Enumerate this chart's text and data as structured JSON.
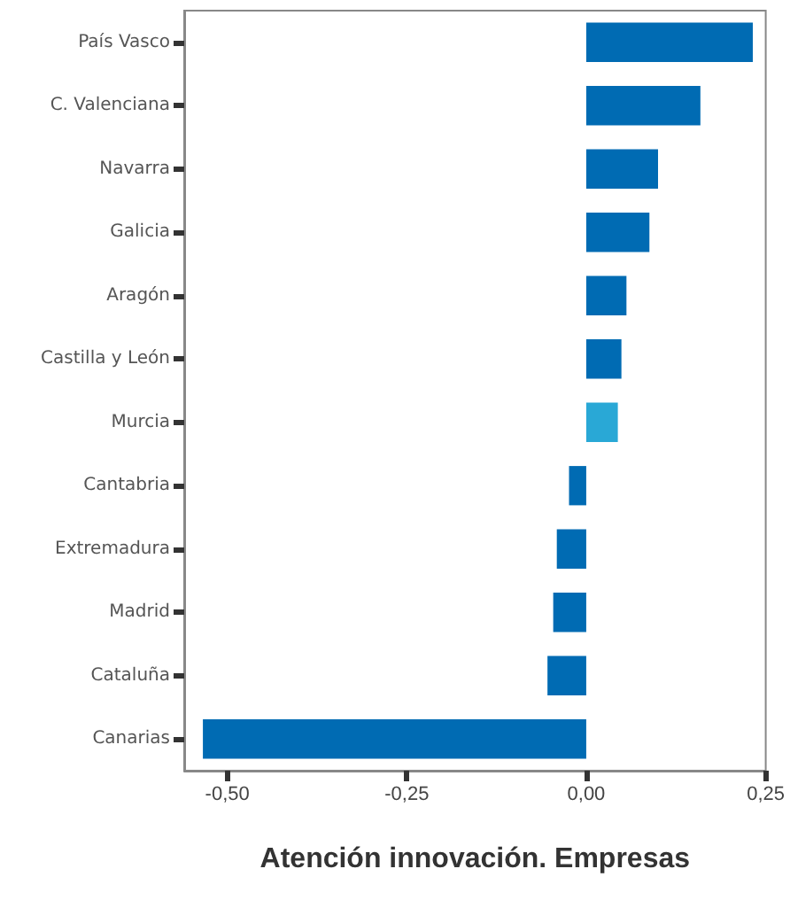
{
  "chart_data": {
    "type": "bar",
    "orientation": "horizontal",
    "xlabel": "Atención innovación. Empresas",
    "categories": [
      "País Vasco",
      "C. Valenciana",
      "Navarra",
      "Galicia",
      "Aragón",
      "Castilla y León",
      "Murcia",
      "Cantabria",
      "Extremadura",
      "Madrid",
      "Cataluña",
      "Canarias"
    ],
    "values": [
      0.232,
      0.159,
      0.1,
      0.088,
      0.056,
      0.049,
      0.044,
      -0.024,
      -0.041,
      -0.046,
      -0.054,
      -0.534
    ],
    "colors": [
      "#006bb3",
      "#006bb3",
      "#006bb3",
      "#006bb3",
      "#006bb3",
      "#006bb3",
      "#29a8d6",
      "#006bb3",
      "#006bb3",
      "#006bb3",
      "#006bb3",
      "#006bb3"
    ],
    "xlim": [
      -0.56,
      0.25
    ],
    "xticks": [
      {
        "value": -0.5,
        "label": "-0,50"
      },
      {
        "value": -0.25,
        "label": "-0,25"
      },
      {
        "value": 0,
        "label": "0,00"
      },
      {
        "value": 0.25,
        "label": "0,25"
      }
    ]
  }
}
